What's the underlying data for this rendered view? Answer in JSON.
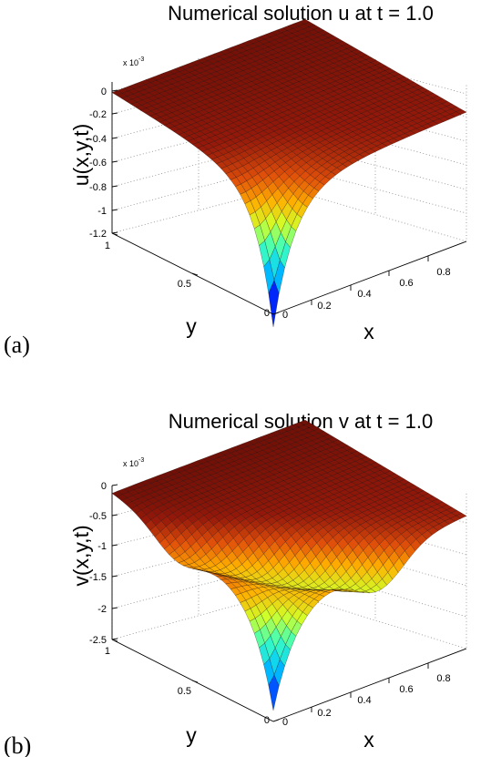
{
  "chart_data": [
    {
      "type": "surface",
      "panel_label": "(a)",
      "title": "Numerical solution u at t = 1.0",
      "xlabel": "x",
      "ylabel": "y",
      "zlabel": "u(x,y,t)",
      "z_multiplier": "x 10",
      "z_multiplier_exp": "-3",
      "xlim": [
        0,
        1
      ],
      "ylim": [
        0,
        1
      ],
      "zlim": [
        -1.2,
        0
      ],
      "xticks": [
        "0",
        "0.2",
        "0.4",
        "0.6",
        "0.8"
      ],
      "yticks": [
        "0",
        "0.5",
        "1"
      ],
      "zticks": [
        "-1.2",
        "-1",
        "-0.8",
        "-0.6",
        "-0.4",
        "-0.2",
        "0"
      ],
      "z_corner_values": {
        "x0_y0": -1.2,
        "x1_y0": -0.22,
        "x0_y1": -0.1,
        "x1_y1": -0.05
      },
      "colormap": "jet",
      "grid": true
    },
    {
      "type": "surface",
      "panel_label": "(b)",
      "title": "Numerical solution v at t = 1.0",
      "xlabel": "x",
      "ylabel": "y",
      "zlabel": "v(x,y,t)",
      "z_multiplier": "x 10",
      "z_multiplier_exp": "-3",
      "xlim": [
        0,
        1
      ],
      "ylim": [
        0,
        1
      ],
      "zlim": [
        -2.5,
        0
      ],
      "xticks": [
        "0",
        "0.2",
        "0.4",
        "0.6",
        "0.8"
      ],
      "yticks": [
        "0",
        "0.5",
        "1"
      ],
      "zticks": [
        "-2.5",
        "-2",
        "-1.5",
        "-1",
        "-0.5",
        "0"
      ],
      "z_corner_values": {
        "x0_y0": -2.5,
        "x1_y0": -0.55,
        "x0_y1": -0.2,
        "x1_y1": -0.1
      },
      "colormap": "jet",
      "grid": true
    }
  ]
}
